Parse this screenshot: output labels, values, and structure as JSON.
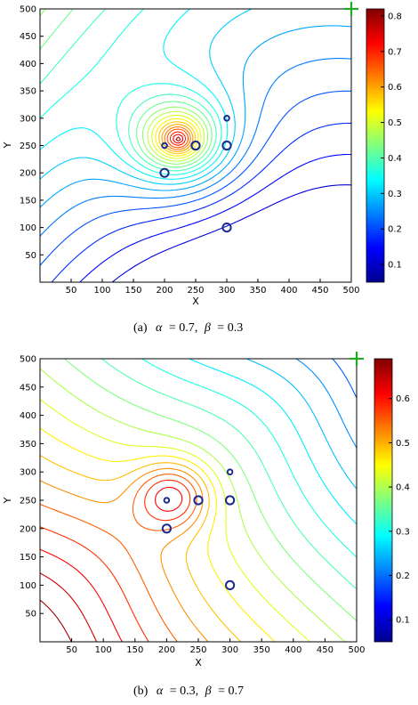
{
  "chart_data": [
    {
      "type": "contour",
      "xlabel": "X",
      "ylabel": "Y",
      "xlim": [
        0,
        500
      ],
      "ylim": [
        0,
        500
      ],
      "x_ticks": [
        50,
        100,
        150,
        200,
        250,
        300,
        350,
        400,
        450,
        500
      ],
      "y_ticks": [
        50,
        100,
        150,
        200,
        250,
        300,
        350,
        400,
        450,
        500
      ],
      "colorbar": {
        "min": 0.05,
        "max": 0.82,
        "ticks": [
          0.1,
          0.2,
          0.3,
          0.4,
          0.5,
          0.6,
          0.7,
          0.8
        ]
      },
      "caption": {
        "label": "(a)",
        "alpha_sym": "α",
        "alpha_val": "= 0.7",
        "beta_sym": "β",
        "beta_val": "= 0.3"
      },
      "sensors": [
        {
          "x": 200,
          "y": 250,
          "size": "small"
        },
        {
          "x": 250,
          "y": 250,
          "size": "medium"
        },
        {
          "x": 300,
          "y": 250,
          "size": "medium"
        },
        {
          "x": 300,
          "y": 300,
          "size": "small"
        },
        {
          "x": 200,
          "y": 200,
          "size": "medium"
        },
        {
          "x": 300,
          "y": 100,
          "size": "medium"
        }
      ],
      "peak": {
        "x": 222,
        "y": 262
      },
      "marker": {
        "x": 500,
        "y": 500,
        "shape": "plus",
        "color": "#22aa22"
      }
    },
    {
      "type": "contour",
      "xlabel": "X",
      "ylabel": "Y",
      "xlim": [
        0,
        500
      ],
      "ylim": [
        0,
        500
      ],
      "x_ticks": [
        50,
        100,
        150,
        200,
        250,
        300,
        350,
        400,
        450,
        500
      ],
      "y_ticks": [
        50,
        100,
        150,
        200,
        250,
        300,
        350,
        400,
        450,
        500
      ],
      "colorbar": {
        "min": 0.05,
        "max": 0.69,
        "ticks": [
          0.1,
          0.2,
          0.3,
          0.4,
          0.5,
          0.6
        ]
      },
      "caption": {
        "label": "(b)",
        "alpha_sym": "α",
        "alpha_val": "= 0.3",
        "beta_sym": "β",
        "beta_val": "= 0.7"
      },
      "sensors": [
        {
          "x": 200,
          "y": 250,
          "size": "small"
        },
        {
          "x": 250,
          "y": 250,
          "size": "medium"
        },
        {
          "x": 300,
          "y": 250,
          "size": "medium"
        },
        {
          "x": 300,
          "y": 300,
          "size": "small"
        },
        {
          "x": 200,
          "y": 200,
          "size": "medium"
        },
        {
          "x": 300,
          "y": 100,
          "size": "medium"
        }
      ],
      "peak": {
        "x": 210,
        "y": 258
      },
      "marker": {
        "x": 500,
        "y": 500,
        "shape": "plus",
        "color": "#22aa22"
      }
    }
  ]
}
